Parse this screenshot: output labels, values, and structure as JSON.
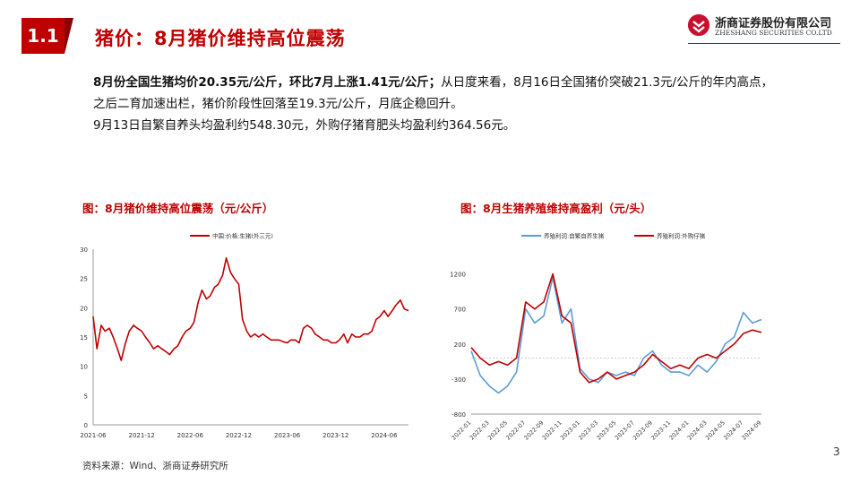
{
  "section": {
    "number": "1.1",
    "title": "猪价：8月猪价维持高位震荡"
  },
  "logo": {
    "name_cn": "浙商证券股份有限公司",
    "name_en": "ZHESHANG SECURITIES CO.LTD",
    "icon": "zheshang-logo-icon",
    "color": "#c8102e"
  },
  "text": {
    "para1_bold": "8月份全国生猪均价20.35元/公斤，环比7月上涨1.41元/公斤；",
    "para1_rest": "从日度来看，8月16日全国猪价突破21.3元/公斤的年内高点，之后二育加速出栏，猪价阶段性回落至19.3元/公斤，月底企稳回升。",
    "para2": "9月13日自繁自养头均盈利约548.30元，外购仔猪育肥头均盈利约364.56元。"
  },
  "captions": {
    "left": "图：8月猪价维持高位震荡（元/公斤）",
    "right": "图：8月生猪养殖维持高盈利（元/头）"
  },
  "source": "资料来源：Wind、浙商证券研究所",
  "page_number": "3",
  "chart_data": [
    {
      "type": "line",
      "legend_position": "top",
      "ylim": [
        0,
        30
      ],
      "yticks": [
        0,
        5,
        10,
        15,
        20,
        25,
        30
      ],
      "xtick_labels": [
        "2021-06",
        "2021-12",
        "2022-06",
        "2022-12",
        "2023-06",
        "2023-12",
        "2024-06"
      ],
      "xlim": [
        "2021-06",
        "2024-09"
      ],
      "series": [
        {
          "name": "中国:价格:生猪(外三元)",
          "color": "#c00000",
          "x": [
            "2021-06",
            "2021-06-15",
            "2021-07",
            "2021-07-15",
            "2021-08",
            "2021-08-15",
            "2021-09",
            "2021-09-15",
            "2021-10",
            "2021-10-15",
            "2021-11",
            "2021-11-15",
            "2021-12",
            "2021-12-15",
            "2022-01",
            "2022-01-15",
            "2022-02",
            "2022-02-15",
            "2022-03",
            "2022-03-15",
            "2022-04",
            "2022-04-15",
            "2022-05",
            "2022-05-15",
            "2022-06",
            "2022-06-15",
            "2022-07",
            "2022-07-15",
            "2022-08",
            "2022-08-15",
            "2022-09",
            "2022-09-15",
            "2022-10",
            "2022-10-15",
            "2022-11",
            "2022-11-15",
            "2022-12",
            "2022-12-15",
            "2023-01",
            "2023-01-15",
            "2023-02",
            "2023-02-15",
            "2023-03",
            "2023-03-15",
            "2023-04",
            "2023-04-15",
            "2023-05",
            "2023-05-15",
            "2023-06",
            "2023-06-15",
            "2023-07",
            "2023-07-15",
            "2023-08",
            "2023-08-15",
            "2023-09",
            "2023-09-15",
            "2023-10",
            "2023-10-15",
            "2023-11",
            "2023-11-15",
            "2023-12",
            "2023-12-15",
            "2024-01",
            "2024-01-15",
            "2024-02",
            "2024-02-15",
            "2024-03",
            "2024-03-15",
            "2024-04",
            "2024-04-15",
            "2024-05",
            "2024-05-15",
            "2024-06",
            "2024-06-15",
            "2024-07",
            "2024-07-15",
            "2024-08",
            "2024-08-15",
            "2024-09"
          ],
          "y": [
            18.5,
            13.0,
            17.0,
            16.0,
            16.5,
            15.0,
            13.0,
            11.0,
            14.0,
            16.0,
            17.0,
            16.5,
            16.0,
            15.0,
            14.0,
            13.0,
            13.5,
            13.0,
            12.5,
            12.0,
            13.0,
            13.5,
            15.0,
            16.0,
            16.5,
            17.5,
            21.0,
            23.0,
            21.5,
            22.0,
            23.5,
            24.0,
            25.5,
            28.5,
            26.0,
            25.0,
            24.0,
            18.0,
            16.0,
            15.0,
            15.5,
            15.0,
            15.5,
            15.0,
            14.5,
            14.5,
            14.5,
            14.2,
            14.0,
            14.5,
            14.5,
            14.0,
            16.5,
            17.0,
            16.5,
            15.5,
            15.0,
            14.5,
            14.5,
            14.0,
            14.0,
            14.5,
            15.5,
            14.0,
            15.5,
            15.0,
            15.0,
            15.5,
            15.5,
            16.0,
            18.0,
            18.5,
            19.5,
            18.5,
            19.5,
            20.5,
            21.3,
            19.8,
            19.5
          ]
        }
      ]
    },
    {
      "type": "line",
      "legend_position": "top",
      "ylim": [
        -800,
        1400
      ],
      "yticks": [
        1200,
        700,
        200,
        -300,
        -800
      ],
      "xtick_labels": [
        "2022-01",
        "2022-03",
        "2022-05",
        "2022-07",
        "2022-09",
        "2022-11",
        "2023-01",
        "2023-03",
        "2023-05",
        "2023-07",
        "2023-09",
        "2023-11",
        "2024-01",
        "2024-03",
        "2024-05",
        "2024-07",
        "2024-09"
      ],
      "xlim": [
        "2022-01",
        "2024-09"
      ],
      "series": [
        {
          "name": "养殖利润:自繁自养生猪",
          "color": "#5b9bd5",
          "x": [
            "2022-01",
            "2022-02",
            "2022-03",
            "2022-04",
            "2022-05",
            "2022-06",
            "2022-07",
            "2022-08",
            "2022-09",
            "2022-10",
            "2022-11",
            "2022-12",
            "2023-01",
            "2023-02",
            "2023-03",
            "2023-04",
            "2023-05",
            "2023-06",
            "2023-07",
            "2023-08",
            "2023-09",
            "2023-10",
            "2023-11",
            "2023-12",
            "2024-01",
            "2024-02",
            "2024-03",
            "2024-04",
            "2024-05",
            "2024-06",
            "2024-07",
            "2024-08",
            "2024-09"
          ],
          "y": [
            100,
            -250,
            -400,
            -500,
            -400,
            -200,
            700,
            500,
            600,
            1150,
            500,
            700,
            -150,
            -300,
            -350,
            -200,
            -250,
            -200,
            -250,
            0,
            100,
            -100,
            -200,
            -200,
            -250,
            -100,
            -200,
            -50,
            200,
            300,
            650,
            500,
            550
          ]
        },
        {
          "name": "养殖利润:外购仔猪",
          "color": "#c00000",
          "x": [
            "2022-01",
            "2022-02",
            "2022-03",
            "2022-04",
            "2022-05",
            "2022-06",
            "2022-07",
            "2022-08",
            "2022-09",
            "2022-10",
            "2022-11",
            "2022-12",
            "2023-01",
            "2023-02",
            "2023-03",
            "2023-04",
            "2023-05",
            "2023-06",
            "2023-07",
            "2023-08",
            "2023-09",
            "2023-10",
            "2023-11",
            "2023-12",
            "2024-01",
            "2024-02",
            "2024-03",
            "2024-04",
            "2024-05",
            "2024-06",
            "2024-07",
            "2024-08",
            "2024-09"
          ],
          "y": [
            150,
            0,
            -100,
            -50,
            -100,
            0,
            800,
            700,
            800,
            1200,
            600,
            500,
            -200,
            -350,
            -300,
            -200,
            -300,
            -250,
            -200,
            -100,
            50,
            -50,
            -150,
            -100,
            -150,
            0,
            50,
            0,
            100,
            200,
            350,
            400,
            365
          ]
        }
      ]
    }
  ]
}
